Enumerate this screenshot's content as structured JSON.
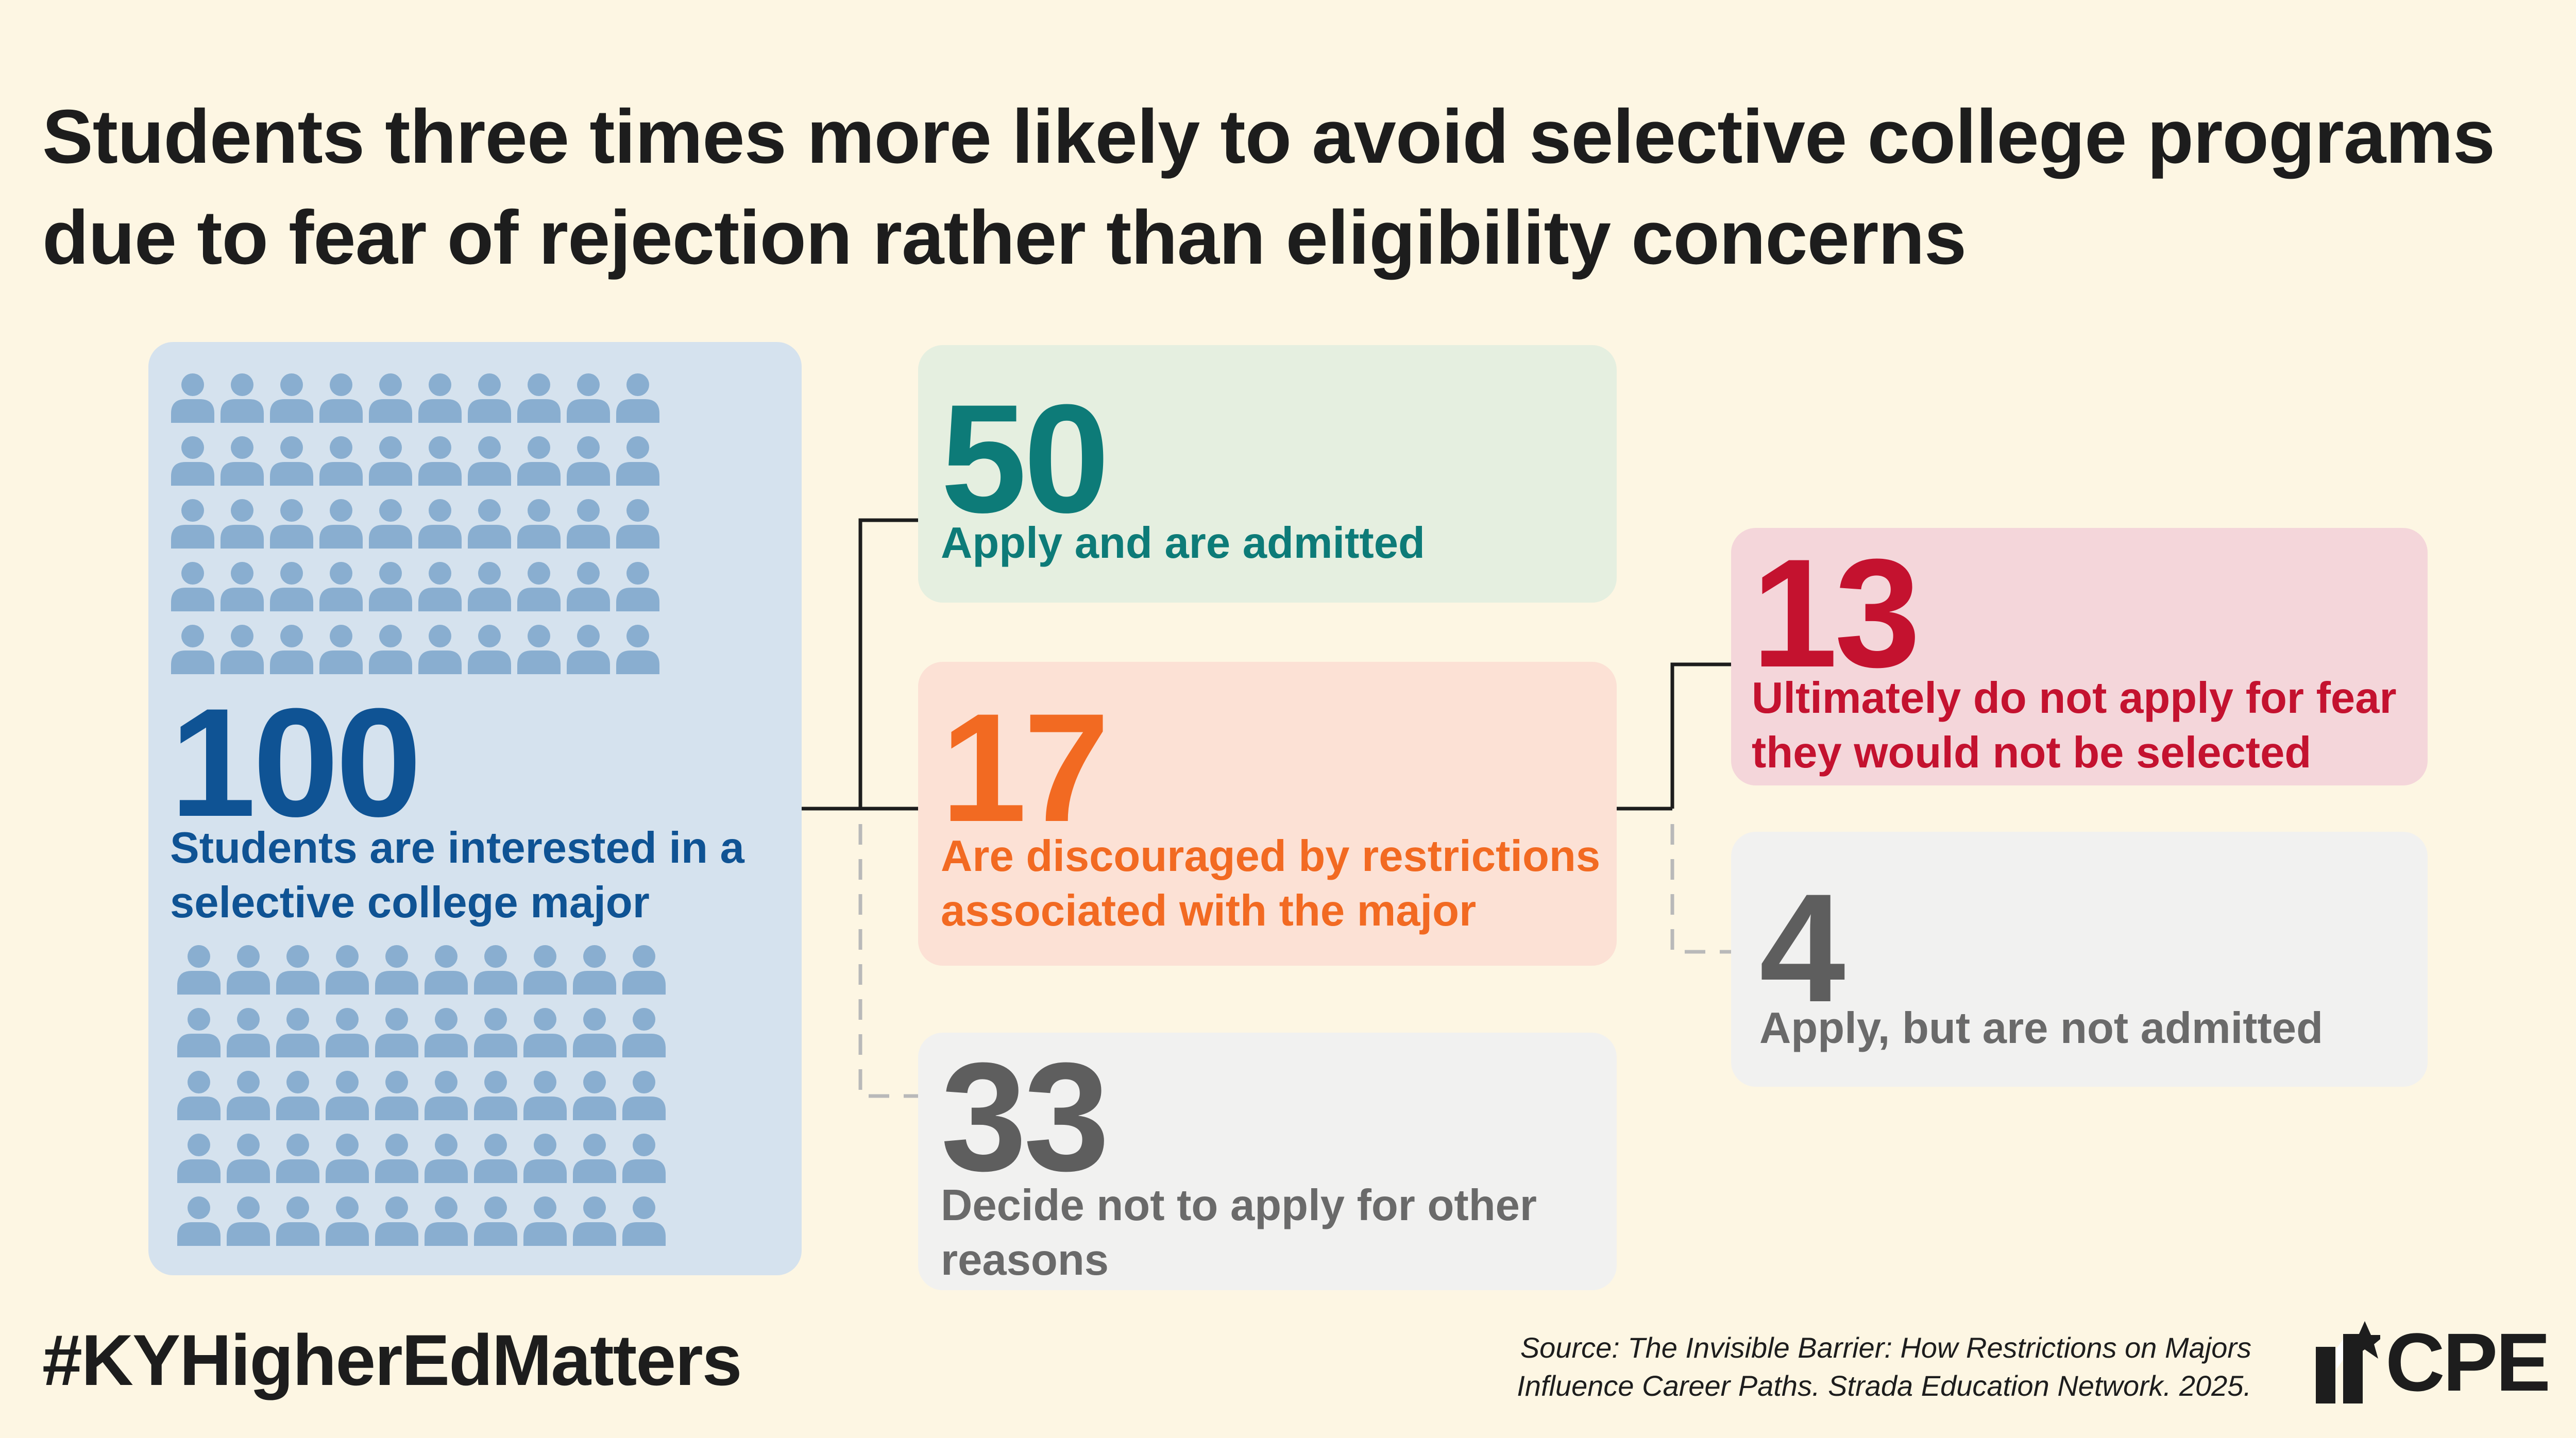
{
  "title_line1": "Students three times more likely to avoid selective college programs",
  "title_line2": "due to fear of rejection rather than eligibility concerns",
  "total": {
    "number": "100",
    "line1": "Students are interested in a",
    "line2": "selective college major"
  },
  "admitted": {
    "number": "50",
    "line1": "Apply and are admitted"
  },
  "discouraged": {
    "number": "17",
    "line1": "Are discouraged by restrictions",
    "line2": "associated with the major"
  },
  "other": {
    "number": "33",
    "line1": "Decide not to apply for other",
    "line2": "reasons"
  },
  "fear": {
    "number": "13",
    "line1": "Ultimately do not apply for fear",
    "line2": "they would not be selected"
  },
  "not_admitted": {
    "number": "4",
    "line1": "Apply, but are not admitted"
  },
  "hashtag": "#KYHigherEdMatters",
  "source_line1": "Source: The Invisible Barrier: How Restrictions on Majors",
  "source_line2": "Influence Career Paths. Strada Education Network. 2025.",
  "logo_text": "CPE",
  "colors": {
    "blue": "#0f5394",
    "teal": "#0d7b78",
    "orange": "#f26a22",
    "red": "#c4122f",
    "gray": "#5e5e5e",
    "icon": "#89aed0"
  }
}
